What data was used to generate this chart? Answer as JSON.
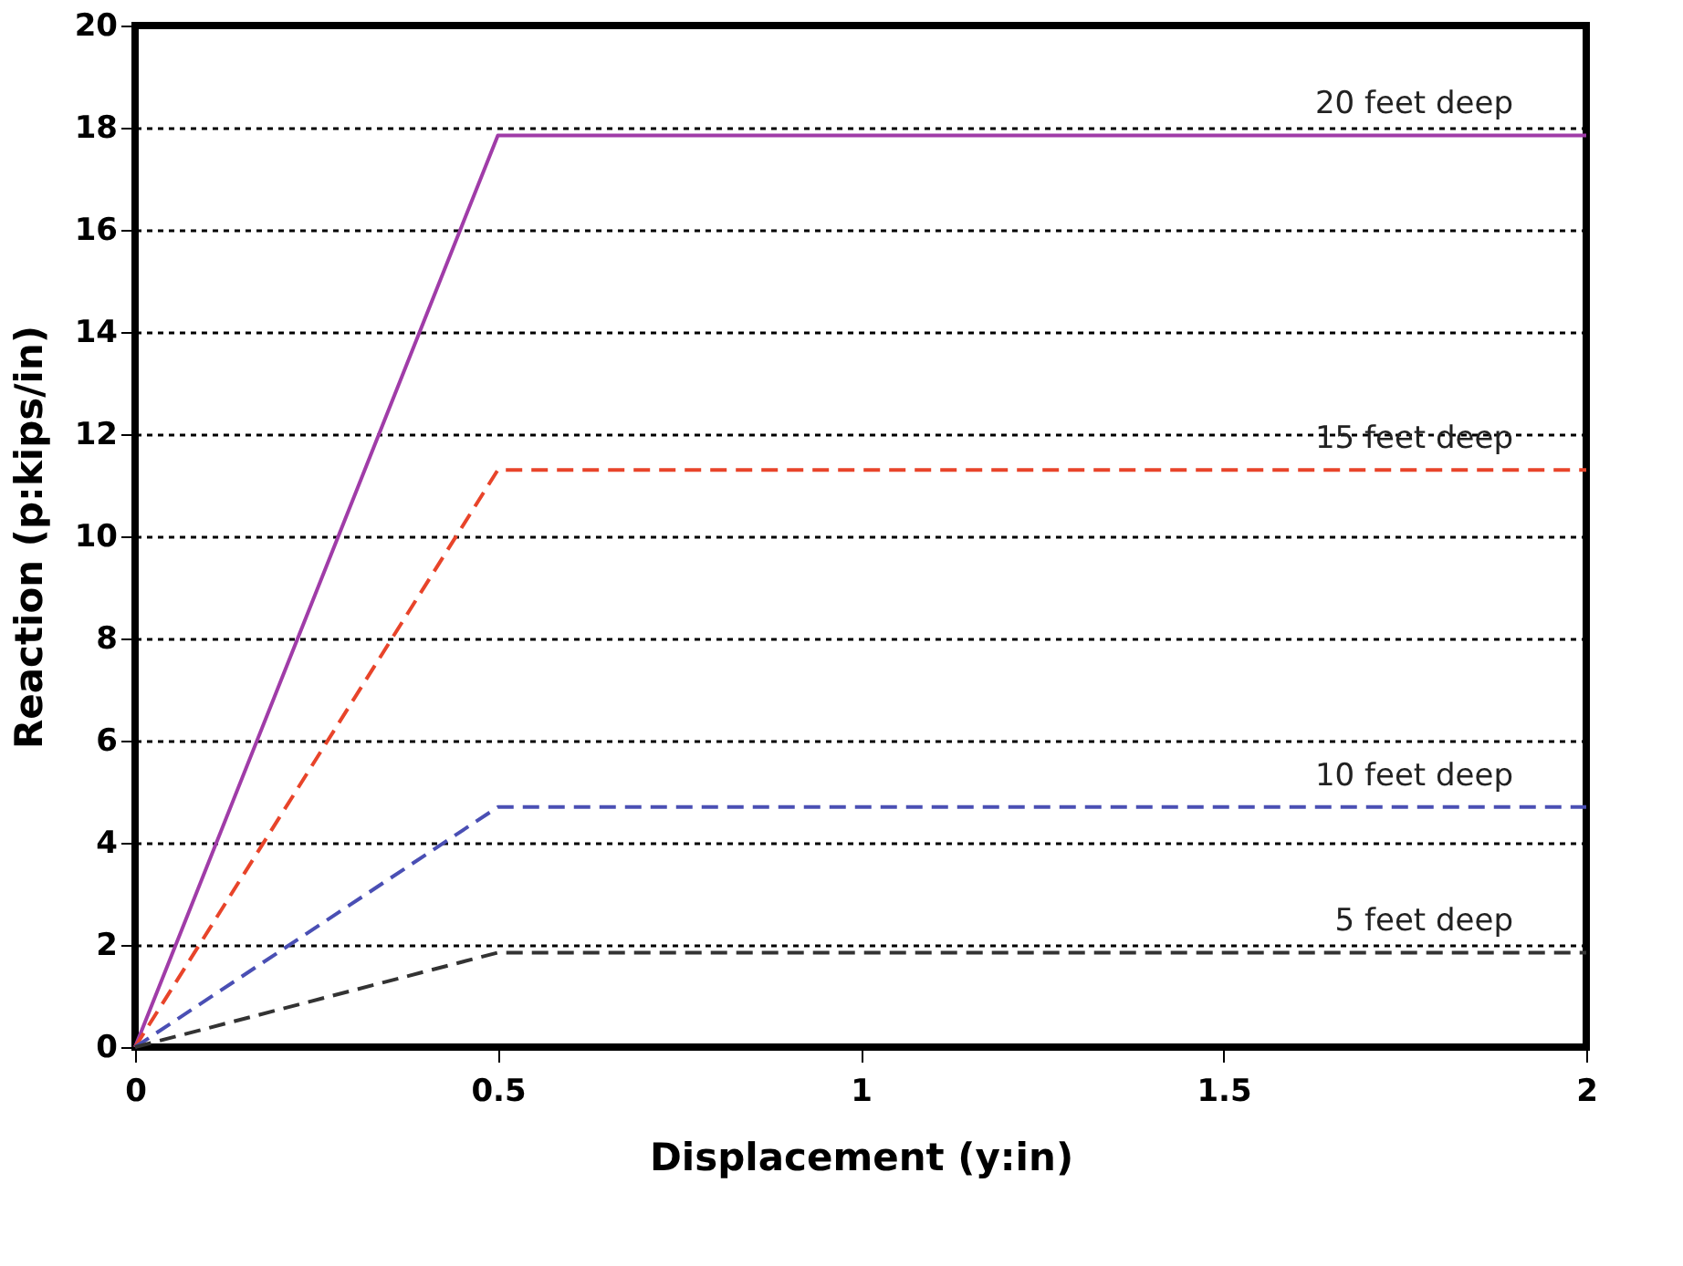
{
  "chart_data": {
    "type": "line",
    "xlabel": "Displacement (y:in)",
    "ylabel": "Reaction (p:kips/in)",
    "x": [
      0,
      0.5,
      2
    ],
    "series": [
      {
        "name": "20 feet deep",
        "color": "#a03ca8",
        "values": [
          0,
          17.85,
          17.85
        ],
        "line_style": "solid"
      },
      {
        "name": "15 feet deep",
        "color": "#e8442a",
        "values": [
          0,
          11.3,
          11.3
        ],
        "line_style": "dashed"
      },
      {
        "name": "10 feet deep",
        "color": "#4a4fb4",
        "values": [
          0,
          4.7,
          4.7
        ],
        "line_style": "dashed"
      },
      {
        "name": "5 feet deep",
        "color": "#333333",
        "values": [
          0,
          1.85,
          1.85
        ],
        "line_style": "dashed"
      }
    ],
    "xlim": [
      0,
      2
    ],
    "xticks": [
      0,
      0.5,
      1,
      1.5,
      2
    ],
    "ylim": [
      0,
      20
    ],
    "yticks": [
      0,
      2,
      4,
      6,
      8,
      10,
      12,
      14,
      16,
      18,
      20
    ],
    "grid": "y",
    "marker": "none"
  }
}
